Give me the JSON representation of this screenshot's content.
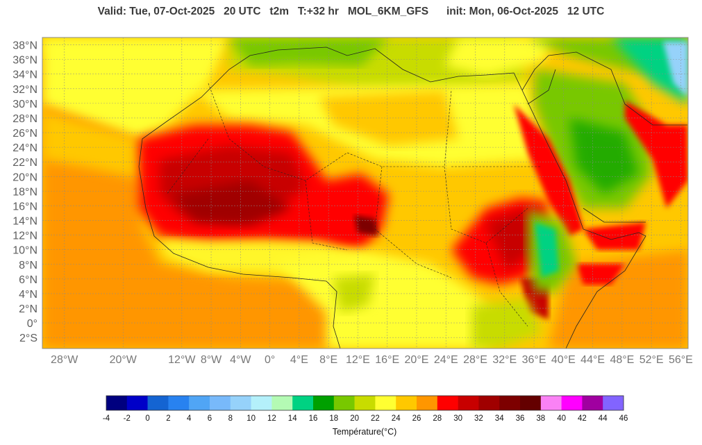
{
  "header": {
    "valid_text": "Valid: Tue, 07-Oct-2025   20 UTC   t2m   T:+32 hr   MOL_6KM_GFS      init: Mon, 06-Oct-2025   12 UTC"
  },
  "map": {
    "variable": "t2m",
    "model": "MOL_6KM_GFS",
    "lon_range": [
      -31,
      57
    ],
    "lat_range": [
      -3.5,
      39
    ],
    "lat_ticks": [
      {
        "value": 38,
        "label": "38°N"
      },
      {
        "value": 36,
        "label": "36°N"
      },
      {
        "value": 34,
        "label": "34°N"
      },
      {
        "value": 32,
        "label": "32°N"
      },
      {
        "value": 30,
        "label": "30°N"
      },
      {
        "value": 28,
        "label": "28°N"
      },
      {
        "value": 26,
        "label": "26°N"
      },
      {
        "value": 24,
        "label": "24°N"
      },
      {
        "value": 22,
        "label": "22°N"
      },
      {
        "value": 20,
        "label": "20°N"
      },
      {
        "value": 18,
        "label": "18°N"
      },
      {
        "value": 16,
        "label": "16°N"
      },
      {
        "value": 14,
        "label": "14°N"
      },
      {
        "value": 12,
        "label": "12°N"
      },
      {
        "value": 10,
        "label": "10°N"
      },
      {
        "value": 8,
        "label": "8°N"
      },
      {
        "value": 6,
        "label": "6°N"
      },
      {
        "value": 4,
        "label": "4°N"
      },
      {
        "value": 2,
        "label": "2°N"
      },
      {
        "value": 0,
        "label": "0°"
      },
      {
        "value": -2,
        "label": "2°S"
      }
    ],
    "lon_ticks": [
      {
        "value": -28,
        "label": "28°W"
      },
      {
        "value": -20,
        "label": "20°W"
      },
      {
        "value": -12,
        "label": "12°W"
      },
      {
        "value": -8,
        "label": "8°W"
      },
      {
        "value": -4,
        "label": "4°W"
      },
      {
        "value": 0,
        "label": "0°"
      },
      {
        "value": 4,
        "label": "4°E"
      },
      {
        "value": 8,
        "label": "8°E"
      },
      {
        "value": 12,
        "label": "12°E"
      },
      {
        "value": 16,
        "label": "16°E"
      },
      {
        "value": 20,
        "label": "20°E"
      },
      {
        "value": 24,
        "label": "24°E"
      },
      {
        "value": 28,
        "label": "28°E"
      },
      {
        "value": 32,
        "label": "32°E"
      },
      {
        "value": 36,
        "label": "36°E"
      },
      {
        "value": 40,
        "label": "40°E"
      },
      {
        "value": 44,
        "label": "44°E"
      },
      {
        "value": 48,
        "label": "48°E"
      },
      {
        "value": 52,
        "label": "52°E"
      },
      {
        "value": 56,
        "label": "56°E"
      }
    ],
    "grid": true
  },
  "colorbar": {
    "title": "Température(°C)",
    "ticks": [
      "-4",
      "-2",
      "0",
      "2",
      "4",
      "6",
      "8",
      "10",
      "12",
      "14",
      "16",
      "18",
      "20",
      "22",
      "24",
      "26",
      "28",
      "30",
      "32",
      "34",
      "36",
      "38",
      "40",
      "42",
      "44",
      "46"
    ],
    "colors": [
      "#00007f",
      "#0000c8",
      "#1464d2",
      "#2882f0",
      "#50a5f5",
      "#78b9fa",
      "#96d2fa",
      "#b4f0fa",
      "#b4fab4",
      "#00d282",
      "#00a000",
      "#78c800",
      "#c8dc00",
      "#ffff32",
      "#ffc800",
      "#ff9600",
      "#ff0000",
      "#c80000",
      "#a00000",
      "#7d0000",
      "#640000",
      "#fa82f5",
      "#ff00ff",
      "#a000a0",
      "#8264ff"
    ]
  }
}
